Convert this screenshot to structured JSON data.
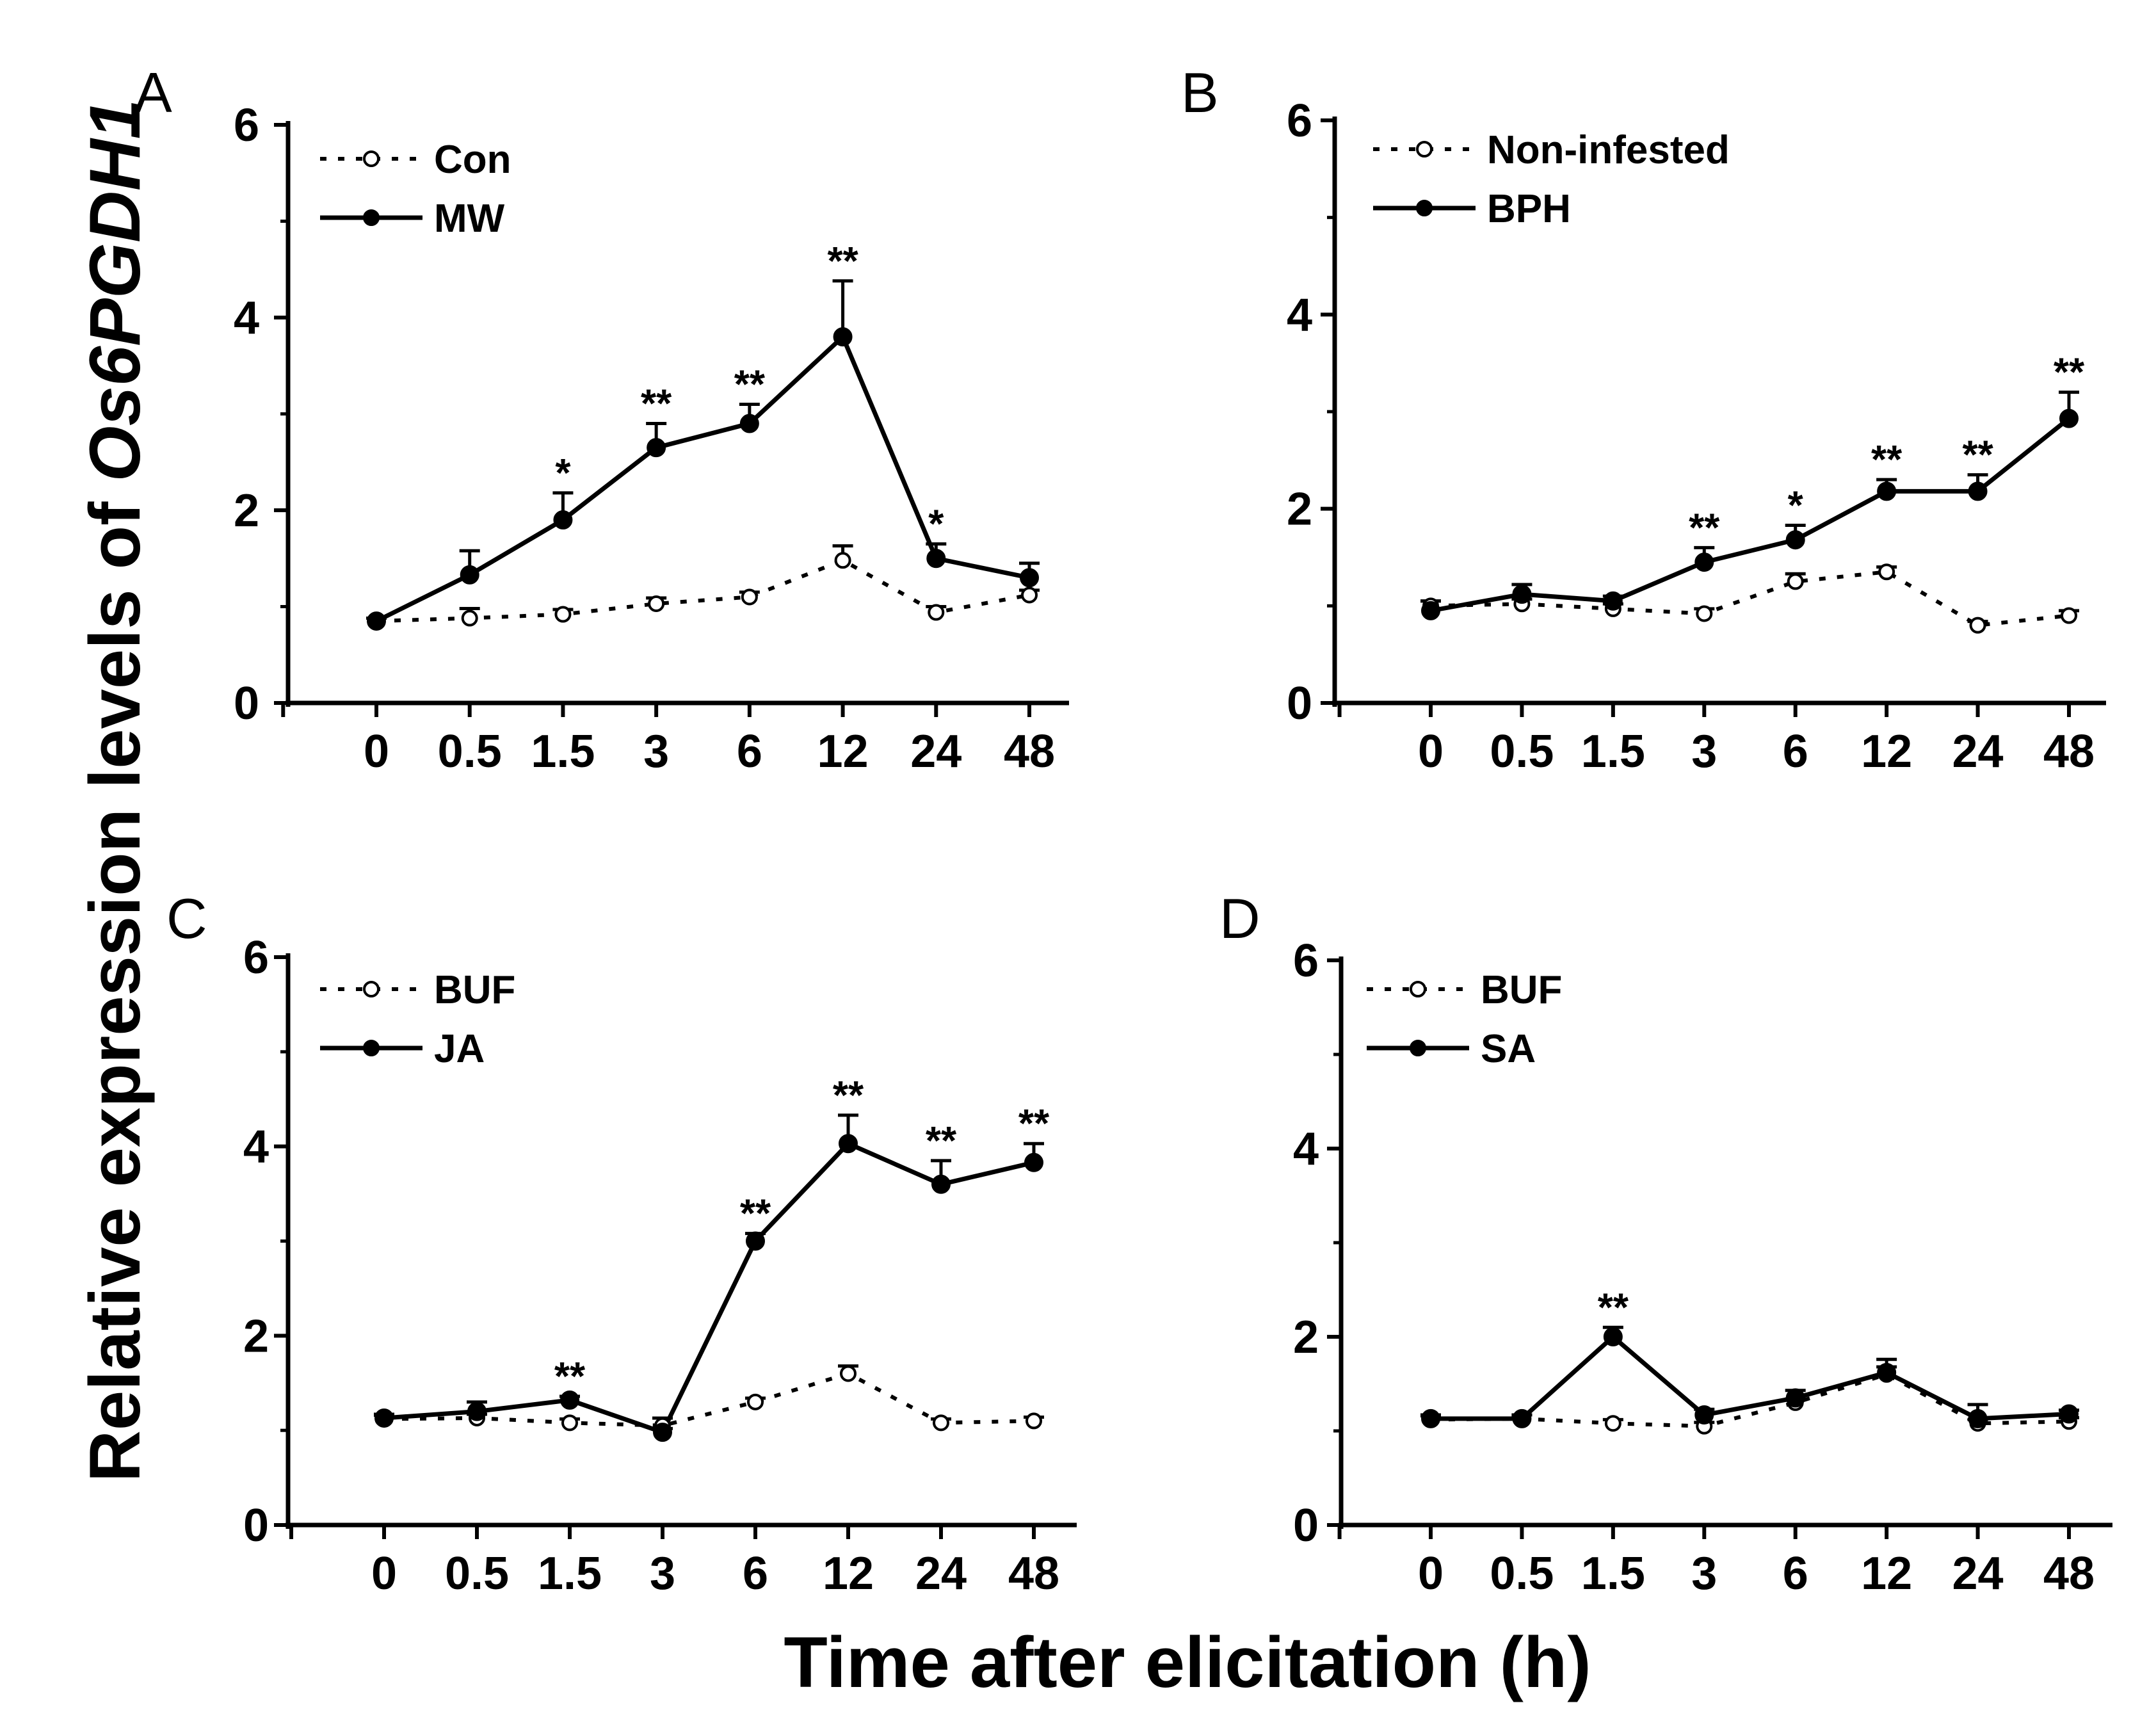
{
  "figure": {
    "ylabel_prefix": "Relative expression levels of ",
    "ylabel_gene": "Os6PGDH1",
    "xlabel": "Time after elicitation (h)"
  },
  "chart_data": [
    {
      "type": "line",
      "panel": "A",
      "categories": [
        "0",
        "0.5",
        "1.5",
        "3",
        "6",
        "12",
        "24",
        "48"
      ],
      "ylim": [
        0,
        6
      ],
      "yticks": [
        "0",
        "2",
        "4",
        "6"
      ],
      "legend_position": "top-left",
      "series": [
        {
          "name": "Con",
          "style": "dotted-open",
          "values": [
            0.85,
            0.88,
            0.92,
            1.03,
            1.1,
            1.48,
            0.94,
            1.12
          ],
          "errors": [
            0.03,
            0.1,
            0.05,
            0.06,
            0.05,
            0.15,
            0.06,
            0.05
          ]
        },
        {
          "name": "MW",
          "style": "solid-filled",
          "values": [
            0.85,
            1.33,
            1.9,
            2.65,
            2.9,
            3.8,
            1.5,
            1.3
          ],
          "errors": [
            0.03,
            0.25,
            0.28,
            0.25,
            0.2,
            0.58,
            0.15,
            0.15
          ]
        }
      ],
      "significance": [
        "",
        "",
        "*",
        "**",
        "**",
        "**",
        "*",
        ""
      ]
    },
    {
      "type": "line",
      "panel": "B",
      "categories": [
        "0",
        "0.5",
        "1.5",
        "3",
        "6",
        "12",
        "24",
        "48"
      ],
      "ylim": [
        0,
        6
      ],
      "yticks": [
        "0",
        "2",
        "4",
        "6"
      ],
      "legend_position": "top-left",
      "series": [
        {
          "name": "Non-infested",
          "style": "dotted-open",
          "values": [
            1.0,
            1.02,
            0.97,
            0.92,
            1.25,
            1.35,
            0.8,
            0.9
          ],
          "errors": [
            0.05,
            0.05,
            0.05,
            0.05,
            0.08,
            0.05,
            0.04,
            0.05
          ]
        },
        {
          "name": "BPH",
          "style": "solid-filled",
          "values": [
            0.95,
            1.12,
            1.05,
            1.45,
            1.68,
            2.18,
            2.18,
            2.93
          ],
          "errors": [
            0.1,
            0.1,
            0.05,
            0.15,
            0.15,
            0.12,
            0.17,
            0.27
          ]
        }
      ],
      "significance": [
        "",
        "",
        "",
        "**",
        "*",
        "**",
        "**",
        "**"
      ]
    },
    {
      "type": "line",
      "panel": "C",
      "categories": [
        "0",
        "0.5",
        "1.5",
        "3",
        "6",
        "12",
        "24",
        "48"
      ],
      "ylim": [
        0,
        6
      ],
      "yticks": [
        "0",
        "2",
        "4",
        "6"
      ],
      "legend_position": "top-left",
      "series": [
        {
          "name": "BUF",
          "style": "dotted-open",
          "values": [
            1.12,
            1.13,
            1.08,
            1.05,
            1.3,
            1.6,
            1.08,
            1.1
          ],
          "errors": [
            0.04,
            0.04,
            0.04,
            0.08,
            0.04,
            0.08,
            0.04,
            0.04
          ]
        },
        {
          "name": "JA",
          "style": "solid-filled",
          "values": [
            1.13,
            1.2,
            1.32,
            0.98,
            3.0,
            4.03,
            3.6,
            3.83
          ],
          "errors": [
            0.04,
            0.1,
            0.04,
            0.04,
            0.08,
            0.3,
            0.25,
            0.2
          ]
        }
      ],
      "significance": [
        "",
        "",
        "**",
        "",
        "**",
        "**",
        "**",
        "**"
      ]
    },
    {
      "type": "line",
      "panel": "D",
      "categories": [
        "0",
        "0.5",
        "1.5",
        "3",
        "6",
        "12",
        "24",
        "48"
      ],
      "ylim": [
        0,
        6
      ],
      "yticks": [
        "0",
        "2",
        "4",
        "6"
      ],
      "legend_position": "top-left",
      "series": [
        {
          "name": "BUF",
          "style": "dotted-open",
          "values": [
            1.12,
            1.13,
            1.08,
            1.05,
            1.3,
            1.6,
            1.08,
            1.1
          ],
          "errors": [
            0.04,
            0.04,
            0.04,
            0.04,
            0.04,
            0.08,
            0.04,
            0.04
          ]
        },
        {
          "name": "SA",
          "style": "solid-filled",
          "values": [
            1.13,
            1.13,
            2.0,
            1.17,
            1.35,
            1.62,
            1.13,
            1.18
          ],
          "errors": [
            0.04,
            0.04,
            0.1,
            0.06,
            0.08,
            0.14,
            0.15,
            0.04
          ]
        }
      ],
      "significance": [
        "",
        "",
        "**",
        "",
        "",
        "",
        "",
        ""
      ]
    }
  ]
}
